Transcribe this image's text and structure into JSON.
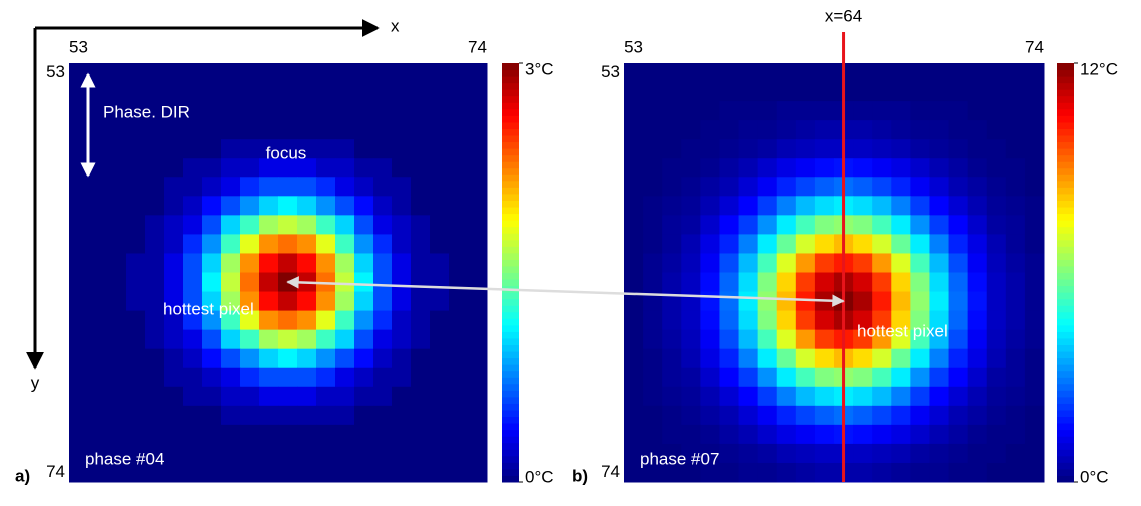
{
  "x_axis_label": "x",
  "y_axis_label": "y",
  "chart_data": [
    {
      "type": "heatmap",
      "panel_label": "a)",
      "colormap": "jet",
      "xlim": [
        52.5,
        74.5
      ],
      "ylim": [
        52.5,
        74.5
      ],
      "xticks": [
        53,
        74
      ],
      "yticks": [
        53,
        74
      ],
      "clim": [
        0,
        3
      ],
      "cticks": [
        {
          "value": 0,
          "label": "0°C"
        },
        {
          "value": 3,
          "label": "3°C"
        }
      ],
      "annotations": [
        {
          "text": "Phase. DIR"
        },
        {
          "text": "focus"
        },
        {
          "text": "phase #04"
        }
      ],
      "hottest": {
        "x": 64,
        "y": 64,
        "label": "hottest pixel"
      },
      "values": [
        [
          0,
          0,
          0,
          0,
          0,
          0,
          0,
          0,
          0,
          0,
          0,
          0,
          0,
          0,
          0,
          0,
          0,
          0,
          0,
          0,
          0,
          0
        ],
        [
          0,
          0,
          0,
          0,
          0,
          0,
          0,
          0,
          0,
          0,
          0,
          0,
          0,
          0,
          0,
          0,
          0,
          0,
          0,
          0,
          0,
          0
        ],
        [
          0,
          0,
          0,
          0,
          0,
          0,
          0,
          0,
          0,
          0,
          0,
          0,
          0,
          0,
          0,
          0,
          0,
          0,
          0,
          0,
          0,
          0
        ],
        [
          0,
          0,
          0,
          0,
          0,
          0,
          0,
          0,
          0,
          0,
          0,
          0,
          0,
          0,
          0,
          0,
          0,
          0,
          0,
          0,
          0,
          0
        ],
        [
          0,
          0,
          0,
          0,
          0,
          0,
          0,
          0,
          0.1,
          0.1,
          0.1,
          0.1,
          0.1,
          0.1,
          0.1,
          0,
          0,
          0,
          0,
          0,
          0,
          0
        ],
        [
          0,
          0,
          0,
          0,
          0,
          0,
          0.1,
          0.1,
          0.2,
          0.2,
          0.3,
          0.3,
          0.3,
          0.2,
          0.2,
          0.1,
          0.1,
          0,
          0,
          0,
          0,
          0
        ],
        [
          0,
          0,
          0,
          0,
          0,
          0.1,
          0.1,
          0.2,
          0.3,
          0.5,
          0.6,
          0.6,
          0.6,
          0.5,
          0.3,
          0.2,
          0.1,
          0.1,
          0,
          0,
          0,
          0
        ],
        [
          0,
          0,
          0,
          0,
          0,
          0.1,
          0.2,
          0.4,
          0.6,
          0.8,
          1,
          1.1,
          1,
          0.8,
          0.6,
          0.4,
          0.2,
          0.1,
          0,
          0,
          0,
          0
        ],
        [
          0,
          0,
          0,
          0,
          0.1,
          0.2,
          0.3,
          0.6,
          1,
          1.3,
          1.6,
          1.7,
          1.6,
          1.3,
          1,
          0.6,
          0.3,
          0.2,
          0.1,
          0,
          0,
          0
        ],
        [
          0,
          0,
          0,
          0,
          0.1,
          0.2,
          0.5,
          0.8,
          1.3,
          1.8,
          2.2,
          2.3,
          2.2,
          1.8,
          1.3,
          0.8,
          0.5,
          0.2,
          0.1,
          0,
          0,
          0
        ],
        [
          0,
          0,
          0,
          0.1,
          0.1,
          0.3,
          0.6,
          1,
          1.6,
          2.2,
          2.6,
          2.8,
          2.6,
          2.2,
          1.6,
          1,
          0.6,
          0.3,
          0.1,
          0.1,
          0,
          0
        ],
        [
          0,
          0,
          0,
          0.1,
          0.1,
          0.3,
          0.6,
          1.1,
          1.7,
          2.3,
          2.8,
          3,
          2.8,
          2.3,
          1.7,
          1.1,
          0.6,
          0.3,
          0.1,
          0.1,
          0,
          0
        ],
        [
          0,
          0,
          0,
          0.1,
          0.1,
          0.3,
          0.6,
          1,
          1.6,
          2.2,
          2.6,
          2.8,
          2.6,
          2.2,
          1.6,
          1,
          0.6,
          0.3,
          0.1,
          0.1,
          0,
          0
        ],
        [
          0,
          0,
          0,
          0,
          0.1,
          0.2,
          0.5,
          0.8,
          1.3,
          1.8,
          2.2,
          2.3,
          2.2,
          1.8,
          1.3,
          0.8,
          0.5,
          0.2,
          0.1,
          0,
          0,
          0
        ],
        [
          0,
          0,
          0,
          0,
          0.1,
          0.2,
          0.3,
          0.6,
          1,
          1.3,
          1.6,
          1.7,
          1.6,
          1.3,
          1,
          0.6,
          0.3,
          0.2,
          0.1,
          0,
          0,
          0
        ],
        [
          0,
          0,
          0,
          0,
          0,
          0.1,
          0.2,
          0.4,
          0.6,
          0.8,
          1,
          1.1,
          1,
          0.8,
          0.6,
          0.4,
          0.2,
          0.1,
          0,
          0,
          0,
          0
        ],
        [
          0,
          0,
          0,
          0,
          0,
          0.1,
          0.1,
          0.2,
          0.3,
          0.5,
          0.6,
          0.6,
          0.6,
          0.5,
          0.3,
          0.2,
          0.1,
          0.1,
          0,
          0,
          0,
          0
        ],
        [
          0,
          0,
          0,
          0,
          0,
          0,
          0.1,
          0.1,
          0.2,
          0.2,
          0.3,
          0.3,
          0.3,
          0.2,
          0.2,
          0.1,
          0.1,
          0,
          0,
          0,
          0,
          0
        ],
        [
          0,
          0,
          0,
          0,
          0,
          0,
          0,
          0,
          0.1,
          0.1,
          0.1,
          0.1,
          0.1,
          0.1,
          0.1,
          0,
          0,
          0,
          0,
          0,
          0,
          0
        ],
        [
          0,
          0,
          0,
          0,
          0,
          0,
          0,
          0,
          0,
          0,
          0,
          0,
          0,
          0,
          0,
          0,
          0,
          0,
          0,
          0,
          0,
          0
        ],
        [
          0,
          0,
          0,
          0,
          0,
          0,
          0,
          0,
          0,
          0,
          0,
          0,
          0,
          0,
          0,
          0,
          0,
          0,
          0,
          0,
          0,
          0
        ],
        [
          0,
          0,
          0,
          0,
          0,
          0,
          0,
          0,
          0,
          0,
          0,
          0,
          0,
          0,
          0,
          0,
          0,
          0,
          0,
          0,
          0,
          0
        ]
      ]
    },
    {
      "type": "heatmap",
      "panel_label": "b)",
      "colormap": "jet",
      "xlim": [
        52.5,
        74.5
      ],
      "ylim": [
        52.5,
        74.5
      ],
      "xticks": [
        53,
        74
      ],
      "yticks": [
        53,
        74
      ],
      "clim": [
        0,
        12
      ],
      "cticks": [
        {
          "value": 0,
          "label": "0°C"
        },
        {
          "value": 12,
          "label": "12°C"
        }
      ],
      "annotations": [
        {
          "text": "phase #07"
        }
      ],
      "vline": {
        "x": 64,
        "label": "x=64",
        "color": "#e8141b"
      },
      "hottest": {
        "x": 64,
        "y": 65,
        "label": "hottest pixel"
      },
      "values": [
        [
          0,
          0,
          0,
          0,
          0,
          0,
          0,
          0,
          0,
          0,
          0,
          0,
          0,
          0,
          0,
          0,
          0,
          0,
          0,
          0,
          0,
          0
        ],
        [
          0,
          0,
          0,
          0,
          0,
          0,
          0,
          0,
          0,
          0,
          0,
          0,
          0,
          0,
          0,
          0,
          0,
          0,
          0,
          0,
          0,
          0
        ],
        [
          0,
          0,
          0,
          0,
          0,
          0.1,
          0.1,
          0.1,
          0.2,
          0.2,
          0.2,
          0.2,
          0.2,
          0.2,
          0.2,
          0.1,
          0.1,
          0.1,
          0,
          0,
          0,
          0
        ],
        [
          0,
          0,
          0,
          0,
          0.1,
          0.1,
          0.2,
          0.2,
          0.3,
          0.4,
          0.5,
          0.5,
          0.5,
          0.4,
          0.3,
          0.2,
          0.2,
          0.1,
          0.1,
          0,
          0,
          0
        ],
        [
          0,
          0,
          0,
          0.1,
          0.1,
          0.2,
          0.3,
          0.4,
          0.6,
          0.7,
          0.8,
          0.8,
          0.8,
          0.7,
          0.6,
          0.4,
          0.3,
          0.2,
          0.1,
          0.1,
          0,
          0
        ],
        [
          0,
          0,
          0.1,
          0.1,
          0.2,
          0.4,
          0.6,
          0.9,
          1.2,
          1.4,
          1.6,
          1.7,
          1.6,
          1.4,
          1.2,
          0.9,
          0.6,
          0.4,
          0.2,
          0.1,
          0.1,
          0
        ],
        [
          0,
          0,
          0.1,
          0.2,
          0.4,
          0.6,
          1,
          1.4,
          1.9,
          2.3,
          2.6,
          2.8,
          2.6,
          2.3,
          1.9,
          1.4,
          1,
          0.6,
          0.4,
          0.2,
          0.1,
          0
        ],
        [
          0,
          0.1,
          0.2,
          0.3,
          0.6,
          1,
          1.5,
          2.2,
          3,
          3.7,
          4.1,
          4.3,
          4.1,
          3.7,
          3,
          2.2,
          1.5,
          1,
          0.6,
          0.3,
          0.2,
          0.1
        ],
        [
          0,
          0.1,
          0.3,
          0.4,
          0.9,
          1.5,
          2.2,
          3.2,
          4.3,
          5.3,
          6,
          6.2,
          6,
          5.3,
          4.3,
          3.2,
          2.2,
          1.5,
          0.9,
          0.4,
          0.3,
          0.1
        ],
        [
          0,
          0.1,
          0.3,
          0.6,
          1.2,
          1.9,
          3,
          4.3,
          5.7,
          7,
          7.9,
          8.3,
          7.9,
          7,
          5.7,
          4.3,
          3,
          1.9,
          1.2,
          0.6,
          0.3,
          0.1
        ],
        [
          0,
          0.2,
          0.4,
          0.7,
          1.4,
          2.4,
          3.7,
          5.3,
          7.1,
          8.7,
          9.8,
          10.2,
          9.8,
          8.7,
          7.1,
          5.3,
          3.7,
          2.4,
          1.4,
          0.7,
          0.4,
          0.2
        ],
        [
          0,
          0.2,
          0.5,
          0.8,
          1.6,
          2.7,
          4.1,
          6,
          8,
          9.8,
          11,
          11.5,
          11,
          9.8,
          8,
          6,
          4.1,
          2.7,
          1.6,
          0.8,
          0.5,
          0.2
        ],
        [
          0,
          0.2,
          0.5,
          0.8,
          1.7,
          2.8,
          4.3,
          6.2,
          8.3,
          10.2,
          11.5,
          12,
          11.5,
          10.2,
          8.3,
          6.2,
          4.3,
          2.8,
          1.7,
          0.8,
          0.5,
          0.2
        ],
        [
          0,
          0.2,
          0.5,
          0.8,
          1.6,
          2.7,
          4.1,
          6,
          8,
          9.8,
          11,
          11.5,
          11,
          9.8,
          8,
          6,
          4.1,
          2.7,
          1.6,
          0.8,
          0.5,
          0.2
        ],
        [
          0,
          0.2,
          0.4,
          0.7,
          1.4,
          2.4,
          3.7,
          5.3,
          7.1,
          8.7,
          9.8,
          10.2,
          9.8,
          8.7,
          7.1,
          5.3,
          3.7,
          2.4,
          1.4,
          0.7,
          0.4,
          0.2
        ],
        [
          0,
          0.1,
          0.3,
          0.6,
          1.2,
          1.9,
          3,
          4.3,
          5.7,
          7,
          7.9,
          8.3,
          7.9,
          7,
          5.7,
          4.3,
          3,
          1.9,
          1.2,
          0.6,
          0.3,
          0.1
        ],
        [
          0,
          0.1,
          0.3,
          0.4,
          0.9,
          1.5,
          2.2,
          3.2,
          4.3,
          5.3,
          6,
          6.2,
          6,
          5.3,
          4.3,
          3.2,
          2.2,
          1.5,
          0.9,
          0.4,
          0.3,
          0.1
        ],
        [
          0,
          0.1,
          0.2,
          0.3,
          0.6,
          1,
          1.5,
          2.2,
          3,
          3.7,
          4.1,
          4.3,
          4.1,
          3.7,
          3,
          2.2,
          1.5,
          1,
          0.6,
          0.3,
          0.2,
          0.1
        ],
        [
          0,
          0,
          0.1,
          0.2,
          0.4,
          0.6,
          1,
          1.4,
          1.9,
          2.3,
          2.6,
          2.8,
          2.6,
          2.3,
          1.9,
          1.4,
          1,
          0.6,
          0.4,
          0.2,
          0.1,
          0
        ],
        [
          0,
          0,
          0.1,
          0.1,
          0.2,
          0.4,
          0.6,
          0.9,
          1.2,
          1.4,
          1.6,
          1.7,
          1.6,
          1.4,
          1.2,
          0.9,
          0.6,
          0.4,
          0.2,
          0.1,
          0.1,
          0
        ],
        [
          0,
          0,
          0,
          0.1,
          0.1,
          0.2,
          0.3,
          0.4,
          0.6,
          0.7,
          0.8,
          0.8,
          0.8,
          0.7,
          0.6,
          0.4,
          0.3,
          0.2,
          0.1,
          0.1,
          0,
          0
        ],
        [
          0,
          0,
          0,
          0,
          0.1,
          0.1,
          0.2,
          0.2,
          0.3,
          0.4,
          0.5,
          0.5,
          0.5,
          0.4,
          0.3,
          0.2,
          0.2,
          0.1,
          0.1,
          0,
          0,
          0
        ]
      ]
    }
  ]
}
